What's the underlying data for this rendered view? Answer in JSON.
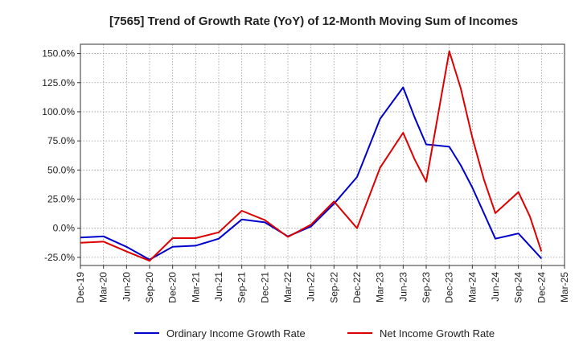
{
  "chart_data": {
    "type": "line",
    "title": "[7565]  Trend of Growth Rate (YoY) of 12-Month Moving Sum of Incomes",
    "xlabel": "",
    "ylabel": "",
    "x": [
      "Dec-19",
      "Mar-20",
      "Jun-20",
      "Sep-20",
      "Dec-20",
      "Mar-21",
      "Jun-21",
      "Sep-21",
      "Dec-21",
      "Mar-22",
      "Jun-22",
      "Sep-22",
      "Dec-22",
      "Mar-23",
      "Jun-23",
      "Sep-23",
      "Dec-23",
      "Mar-24",
      "Jun-24",
      "Sep-24",
      "Dec-24",
      "Mar-25"
    ],
    "ylim": [
      -32,
      158
    ],
    "yticks": [
      -25,
      0,
      25,
      50,
      75,
      100,
      125,
      150
    ],
    "ytick_labels": [
      "-25.0%",
      "0.0%",
      "25.0%",
      "50.0%",
      "75.0%",
      "100.0%",
      "125.0%",
      "150.0%"
    ],
    "grid": true,
    "legend_position": "bottom",
    "series": [
      {
        "name": "Ordinary Income Growth Rate",
        "color": "#0000cc",
        "points": [
          [
            0,
            -8
          ],
          [
            1,
            -7
          ],
          [
            2,
            -16
          ],
          [
            3,
            -27
          ],
          [
            4,
            -16
          ],
          [
            5,
            -15
          ],
          [
            6,
            -9
          ],
          [
            7,
            7.5
          ],
          [
            8,
            5
          ],
          [
            9,
            -7
          ],
          [
            10,
            1.5
          ],
          [
            11,
            21
          ],
          [
            12,
            44
          ],
          [
            13,
            94
          ],
          [
            14,
            121
          ],
          [
            14.5,
            95
          ],
          [
            15,
            72
          ],
          [
            15.5,
            71
          ],
          [
            16,
            70
          ],
          [
            16.5,
            54
          ],
          [
            17,
            35
          ],
          [
            17.5,
            13
          ],
          [
            18,
            -9
          ],
          [
            19,
            -4.5
          ],
          [
            20,
            -26
          ]
        ]
      },
      {
        "name": "Net Income Growth Rate",
        "color": "#dd0000",
        "points": [
          [
            0,
            -12.5
          ],
          [
            1,
            -11.5
          ],
          [
            2,
            -20
          ],
          [
            3,
            -28
          ],
          [
            4,
            -8.5
          ],
          [
            5,
            -8.5
          ],
          [
            6,
            -3.5
          ],
          [
            7,
            15
          ],
          [
            8,
            7
          ],
          [
            9,
            -7.5
          ],
          [
            10,
            3
          ],
          [
            11,
            23
          ],
          [
            12,
            0
          ],
          [
            13,
            52
          ],
          [
            14,
            82
          ],
          [
            14.5,
            59
          ],
          [
            15,
            40
          ],
          [
            16,
            152
          ],
          [
            16.5,
            120
          ],
          [
            17,
            78
          ],
          [
            17.5,
            42
          ],
          [
            18,
            13
          ],
          [
            19,
            31
          ],
          [
            19.5,
            10
          ],
          [
            20,
            -20
          ]
        ]
      }
    ]
  }
}
